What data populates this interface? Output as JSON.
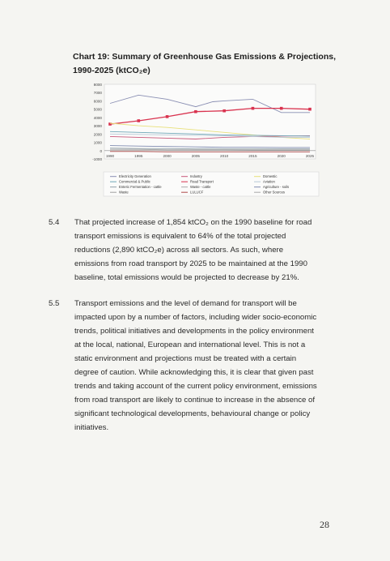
{
  "chart_title": "Chart 19: Summary of Greenhouse Gas Emissions & Projections, 1990-2025 (ktCO₂e)",
  "chart_data": {
    "type": "line",
    "title": "Chart 19: Summary of Greenhouse Gas Emissions & Projections, 1990-2025 (ktCO₂e)",
    "x_ticks": [
      "1990",
      "1995",
      "2000",
      "2005",
      "2010",
      "2015",
      "2020",
      "2025"
    ],
    "y_ticks": [
      "8000",
      "7000",
      "6000",
      "5000",
      "4000",
      "3000",
      "2000",
      "1000",
      "0",
      "-1000"
    ],
    "ylim": [
      -1000,
      8000
    ],
    "xlim": [
      1990,
      2025
    ],
    "legend": [
      "Electricity Generation",
      "Industry",
      "Domestic",
      "Commercial & Public",
      "Road Transport",
      "Aviation",
      "Enteric Fermentation - cattle",
      "Waste - cattle",
      "Agriculture - soils",
      "Waste",
      "LULUCF",
      "Other Sources"
    ],
    "series": [
      {
        "name": "Electricity Generation",
        "color": "#8a8fb3",
        "x": [
          1990,
          1995,
          2000,
          2005,
          2008,
          2010,
          2015,
          2020,
          2025
        ],
        "values": [
          5700,
          6700,
          6200,
          5300,
          5900,
          6000,
          6200,
          4600,
          4600
        ]
      },
      {
        "name": "Road Transport",
        "color": "#d9334f",
        "marker": true,
        "x": [
          1990,
          1995,
          2000,
          2005,
          2010,
          2015,
          2020,
          2025
        ],
        "values": [
          3200,
          3600,
          4100,
          4700,
          4800,
          5100,
          5100,
          5000
        ]
      },
      {
        "name": "Domestic",
        "color": "#e8e07a",
        "x": [
          1990,
          1995,
          2000,
          2005,
          2010,
          2015,
          2020,
          2025
        ],
        "values": [
          3300,
          3000,
          2800,
          2500,
          2200,
          1900,
          1600,
          1400
        ]
      },
      {
        "name": "Industry",
        "color": "#c9587a",
        "x": [
          1990,
          1995,
          2000,
          2005,
          2010,
          2015,
          2020,
          2025
        ],
        "values": [
          1700,
          1600,
          1500,
          1400,
          1600,
          1700,
          1750,
          1800
        ]
      },
      {
        "name": "Commercial & Public",
        "color": "#6fa7b8",
        "x": [
          1990,
          1995,
          2000,
          2005,
          2010,
          2015,
          2020,
          2025
        ],
        "values": [
          2300,
          2200,
          2100,
          2000,
          1900,
          1850,
          1800,
          1750
        ]
      },
      {
        "name": "Aviation",
        "color": "#b8c9d6",
        "x": [
          1990,
          1995,
          2000,
          2005,
          2010,
          2015,
          2020,
          2025
        ],
        "values": [
          2000,
          1950,
          1900,
          1850,
          1800,
          1700,
          1600,
          1600
        ]
      },
      {
        "name": "Agriculture - soils",
        "color": "#7f8bb0",
        "x": [
          1990,
          1995,
          2000,
          2005,
          2010,
          2015,
          2020,
          2025
        ],
        "values": [
          600,
          550,
          500,
          450,
          400,
          400,
          380,
          380
        ]
      },
      {
        "name": "Enteric Fermentation - cattle",
        "color": "#90a0a8",
        "x": [
          1990,
          1995,
          2000,
          2005,
          2010,
          2015,
          2020,
          2025
        ],
        "values": [
          300,
          250,
          250,
          200,
          200,
          200,
          200,
          200
        ]
      },
      {
        "name": "Waste",
        "color": "#a0a0a0",
        "x": [
          1990,
          1995,
          2000,
          2005,
          2010,
          2015,
          2020,
          2025
        ],
        "values": [
          150,
          150,
          100,
          100,
          100,
          80,
          80,
          80
        ]
      },
      {
        "name": "LULUCF",
        "color": "#b04a4a",
        "x": [
          1990,
          1995,
          2000,
          2005,
          2010,
          2015,
          2020,
          2025
        ],
        "values": [
          -100,
          -100,
          -150,
          -150,
          -150,
          -150,
          -150,
          -150
        ]
      }
    ]
  },
  "paragraphs": [
    {
      "num": "5.4",
      "lines": [
        "That projected increase of 1,854 ktCO₂ on the 1990 baseline for road",
        "transport emissions is equivalent to 64% of the total projected",
        "reductions (2,890 ktCO₂e) across all sectors. As such, where",
        "emissions from road transport by 2025 to be maintained at the 1990",
        "baseline, total emissions would be projected to decrease by 21%."
      ]
    },
    {
      "num": "5.5",
      "lines": [
        "Transport emissions and the level of demand for transport will be",
        "impacted upon by a number of factors, including wider socio-economic",
        "trends, political initiatives and developments in the policy environment",
        "at the local, national, European and international level. This is not a",
        "static environment and projections must be treated with a certain",
        "degree of caution. While acknowledging this, it is clear that given past",
        "trends and taking account of the current policy environment, emissions",
        "from road transport are likely to continue to increase in the absence of",
        "significant technological developments, behavioural change or policy",
        "initiatives."
      ]
    }
  ],
  "page_number": "28"
}
